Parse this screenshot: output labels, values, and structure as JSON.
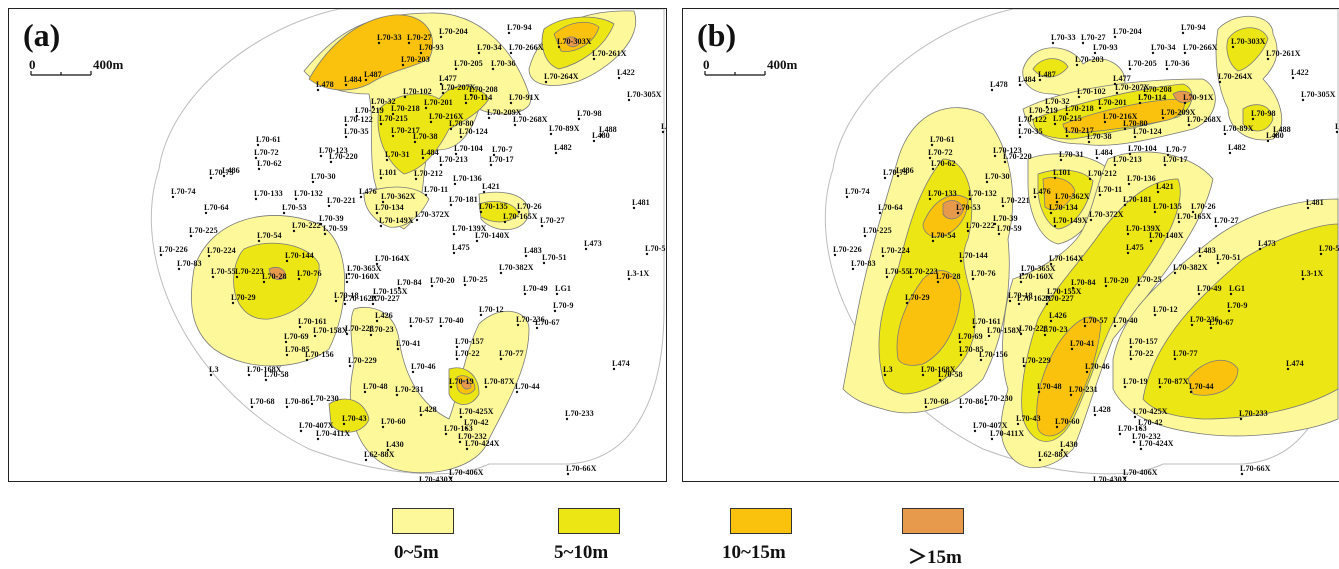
{
  "panels": [
    {
      "letter": "(a)",
      "scale_zero": "0",
      "scale_text": "400m"
    },
    {
      "letter": "(b)",
      "scale_zero": "0",
      "scale_text": "400m"
    }
  ],
  "legend": [
    {
      "label": "0~5m",
      "color": "#fdf99a"
    },
    {
      "label": "5~10m",
      "color": "#ede615"
    },
    {
      "label": "10~15m",
      "color": "#fbc20d"
    },
    {
      "label": "＞15m",
      "color": "#e89a4c"
    }
  ],
  "colors": {
    "class1": "#fdf99a",
    "class2": "#ede615",
    "class3": "#fbc20d",
    "class4": "#e89a4c",
    "outline": "#7a7a7a",
    "boundary": "#bdbdbd"
  },
  "wells": [
    "L70-204",
    "L70-33",
    "L70-27",
    "L70-93",
    "L70-34",
    "L70-94",
    "L70-303X",
    "L70-261X",
    "L70-203",
    "L70-205",
    "L70-36",
    "L70-266X",
    "L422",
    "L478",
    "L484",
    "L487",
    "L477",
    "L70-207X",
    "L70-264X",
    "L70-305X",
    "L70-102",
    "L70-208",
    "L70-114",
    "L70-91X",
    "L70-32",
    "L70-201",
    "L70-219",
    "L70-218",
    "L70-122",
    "L70-215",
    "L70-216X",
    "L70-209X",
    "L70-268X",
    "L70-98",
    "L70-35",
    "L70-217",
    "L70-80",
    "L70-124",
    "L70-38",
    "L70-89X",
    "L488",
    "L480",
    "L479",
    "L70-61",
    "L70-72",
    "L70-123",
    "L70-220",
    "L70-31",
    "L484",
    "L70-104",
    "L70-7",
    "L70-213",
    "L70-17",
    "L482",
    "L70-62",
    "L70-73",
    "L486",
    "L70-30",
    "L101",
    "L70-212",
    "L70-136",
    "L70-74",
    "L70-133",
    "L70-132",
    "L70-11",
    "L421",
    "L476",
    "L70-362X",
    "L70-181",
    "L70-64",
    "L70-53",
    "L70-221",
    "L70-134",
    "L70-135",
    "L70-26",
    "L481",
    "L70-39",
    "L70-372X",
    "L70-165X",
    "L70-27",
    "L70-225",
    "L70-222",
    "L70-59",
    "L70-149X",
    "L70-139X",
    "L70-54",
    "L70-140X",
    "L70-144",
    "L473",
    "L70-226",
    "L70-224",
    "L475",
    "L483",
    "L70-5",
    "L70-164X",
    "L70-51",
    "L70-83",
    "L70-55",
    "L70-223",
    "L70-365X",
    "L70-382X",
    "L3-1X",
    "L70-28",
    "L70-76",
    "L70-160X",
    "L70-84",
    "L70-20",
    "L70-25",
    "L70-49",
    "LG1",
    "L70-155X",
    "L70-29",
    "L70-18",
    "L70-162X",
    "L70-227",
    "L70-9",
    "L426",
    "L70-12",
    "L70-57",
    "L70-40",
    "L70-236",
    "L70-67",
    "L70-161",
    "L70-158X",
    "L70-228",
    "L70-23",
    "L70-69",
    "L70-157",
    "L70-41",
    "L70-85",
    "L70-156",
    "L70-22",
    "L70-77",
    "L70-46",
    "L474",
    "L3",
    "L70-168X",
    "L70-58",
    "L70-229",
    "L70-19",
    "L70-87X",
    "L70-44",
    "L70-48",
    "L70-231",
    "L70-68",
    "L70-86",
    "L70-230",
    "L428",
    "L70-425X",
    "L70-43",
    "L70-233",
    "L70-60",
    "L70-163",
    "L70-42",
    "L70-407X",
    "L70-411X",
    "L70-232",
    "L70-424X",
    "L430",
    "L62-88X",
    "L70-66X",
    "L70-406X",
    "L70-430X",
    "L62-87X",
    "L70-413X"
  ]
}
